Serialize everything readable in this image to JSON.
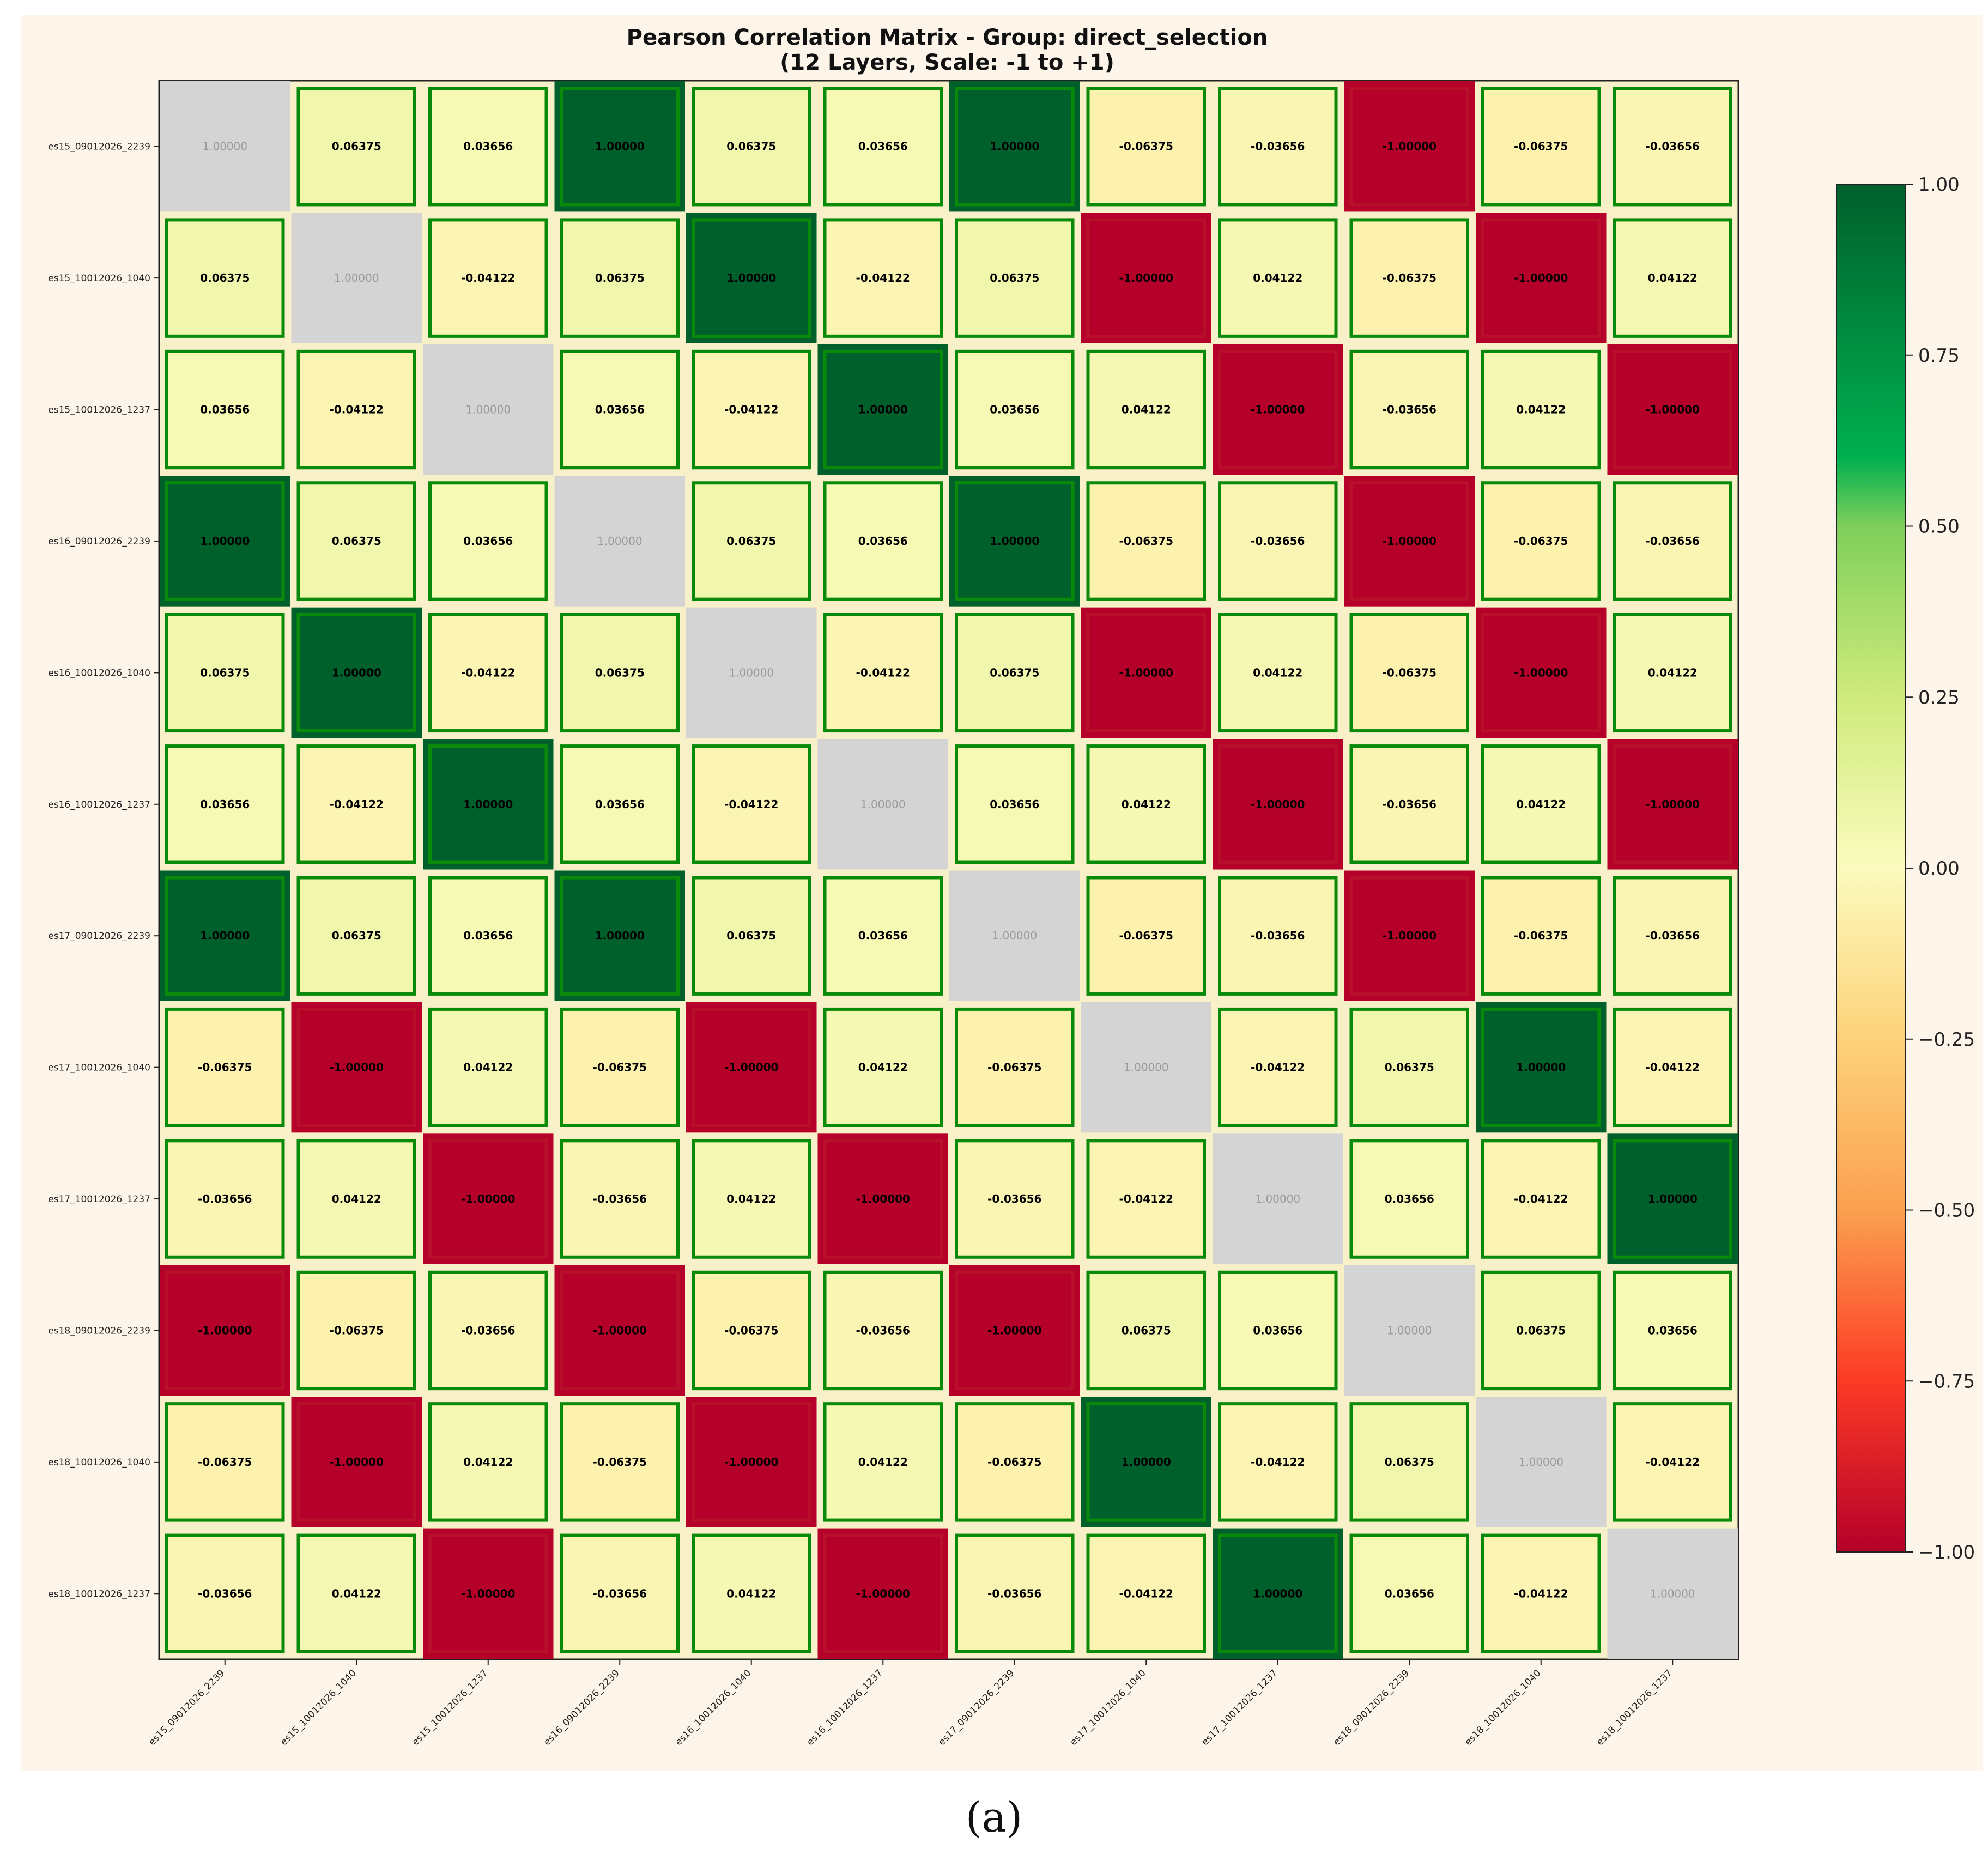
{
  "chart_data": {
    "type": "heatmap",
    "title_line1": "Pearson Correlation Matrix - Group: direct_selection",
    "title_line2": "(12 Layers, Scale: -1 to +1)",
    "labels": [
      "es15_09012026_2239",
      "es15_10012026_1040",
      "es15_10012026_1237",
      "es16_09012026_2239",
      "es16_10012026_1040",
      "es16_10012026_1237",
      "es17_09012026_2239",
      "es17_10012026_1040",
      "es17_10012026_1237",
      "es18_09012026_2239",
      "es18_10012026_1040",
      "es18_10012026_1237"
    ],
    "matrix": [
      [
        1.0,
        0.06375,
        0.03656,
        1.0,
        0.06375,
        0.03656,
        1.0,
        -0.06375,
        -0.03656,
        -1.0,
        -0.06375,
        -0.03656
      ],
      [
        0.06375,
        1.0,
        -0.04122,
        0.06375,
        1.0,
        -0.04122,
        0.06375,
        -1.0,
        0.04122,
        -0.06375,
        -1.0,
        0.04122
      ],
      [
        0.03656,
        -0.04122,
        1.0,
        0.03656,
        -0.04122,
        1.0,
        0.03656,
        0.04122,
        -1.0,
        -0.03656,
        0.04122,
        -1.0
      ],
      [
        1.0,
        0.06375,
        0.03656,
        1.0,
        0.06375,
        0.03656,
        1.0,
        -0.06375,
        -0.03656,
        -1.0,
        -0.06375,
        -0.03656
      ],
      [
        0.06375,
        1.0,
        -0.04122,
        0.06375,
        1.0,
        -0.04122,
        0.06375,
        -1.0,
        0.04122,
        -0.06375,
        -1.0,
        0.04122
      ],
      [
        0.03656,
        -0.04122,
        1.0,
        0.03656,
        -0.04122,
        1.0,
        0.03656,
        0.04122,
        -1.0,
        -0.03656,
        0.04122,
        -1.0
      ],
      [
        1.0,
        0.06375,
        0.03656,
        1.0,
        0.06375,
        0.03656,
        1.0,
        -0.06375,
        -0.03656,
        -1.0,
        -0.06375,
        -0.03656
      ],
      [
        -0.06375,
        -1.0,
        0.04122,
        -0.06375,
        -1.0,
        0.04122,
        -0.06375,
        1.0,
        -0.04122,
        0.06375,
        1.0,
        -0.04122
      ],
      [
        -0.03656,
        0.04122,
        -1.0,
        -0.03656,
        0.04122,
        -1.0,
        -0.03656,
        -0.04122,
        1.0,
        0.03656,
        -0.04122,
        1.0
      ],
      [
        -1.0,
        -0.06375,
        -0.03656,
        -1.0,
        -0.06375,
        -0.03656,
        -1.0,
        0.06375,
        0.03656,
        1.0,
        0.06375,
        0.03656
      ],
      [
        -0.06375,
        -1.0,
        0.04122,
        -0.06375,
        -1.0,
        0.04122,
        -0.06375,
        1.0,
        -0.04122,
        0.06375,
        1.0,
        -0.04122
      ],
      [
        -0.03656,
        0.04122,
        -1.0,
        -0.03656,
        0.04122,
        -1.0,
        -0.03656,
        -0.04122,
        1.0,
        0.03656,
        -0.04122,
        1.0
      ]
    ],
    "value_format_decimals": 5,
    "diagonal_style": "greyed",
    "colorbar": {
      "colormap": "RdYlGn",
      "range": [
        -1,
        1
      ],
      "ticks": [
        1.0,
        0.75,
        0.5,
        0.25,
        0.0,
        -0.25,
        -0.5,
        -0.75,
        -1.0
      ],
      "tick_labels": [
        "1.00",
        "0.75",
        "0.50",
        "0.25",
        "0.00",
        "−0.25",
        "−0.50",
        "−0.75",
        "−1.00"
      ]
    },
    "colors": {
      "figure_background": "#fdf5ea",
      "diagonal_cell": "#d4d4d4",
      "positive_border": "#0a8a0a",
      "negative_border": "#b8102a",
      "grid_background": "#f7f0c8",
      "stop_neg1": "#b5002a",
      "stop_neg075": "#fc3a25",
      "stop_neg05": "#fba050",
      "stop_neg025": "#fdd27a",
      "stop_0": "#fbfbbe",
      "stop_025": "#cfeb7c",
      "stop_05": "#7fcf5b",
      "stop_06": "#00b050",
      "stop_1": "#00602c"
    }
  },
  "caption": "(a)"
}
